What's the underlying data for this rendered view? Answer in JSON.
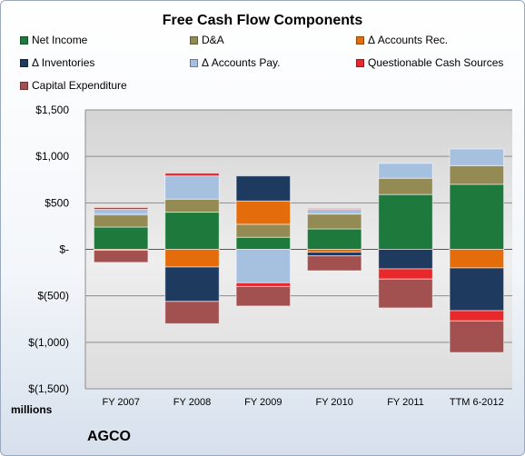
{
  "chart_data": {
    "type": "bar",
    "stacked": true,
    "title": "Free Cash Flow Components",
    "ylabel": "millions",
    "ylim": [
      -1500,
      1500
    ],
    "y_ticks": [
      1500,
      1000,
      500,
      0,
      -500,
      -1000,
      -1500
    ],
    "y_tick_labels": [
      "$1,500",
      "$1,000",
      "$500",
      "$-",
      "$(500)",
      "$(1,000)",
      "$(1,500)"
    ],
    "categories": [
      "FY 2007",
      "FY 2008",
      "FY 2009",
      "FY 2010",
      "FY 2011",
      "TTM 6-2012"
    ],
    "grid": true,
    "legend_position": "top",
    "series": [
      {
        "name": "Net Income",
        "color": "#1e7a3c",
        "values": [
          240,
          400,
          130,
          220,
          590,
          700
        ]
      },
      {
        "name": "D&A",
        "color": "#948a54",
        "values": [
          130,
          140,
          140,
          160,
          175,
          200
        ]
      },
      {
        "name": "Δ Accounts Rec.",
        "color": "#e46c0a",
        "values": [
          -10,
          -190,
          250,
          -30,
          0,
          -200
        ]
      },
      {
        "name": "Δ Inventories",
        "color": "#1f3a5f",
        "values": [
          10,
          -370,
          270,
          -40,
          -210,
          -460
        ]
      },
      {
        "name": "Δ Accounts Pay.",
        "color": "#a6c0e0",
        "values": [
          50,
          250,
          -360,
          50,
          160,
          180
        ]
      },
      {
        "name": "Questionable Cash Sources",
        "color": "#e8282b",
        "values": [
          20,
          30,
          -40,
          10,
          -110,
          -110
        ]
      },
      {
        "name": "Capital Expenditure",
        "color": "#a35050",
        "values": [
          -130,
          -240,
          -210,
          -160,
          -310,
          -340
        ]
      }
    ]
  },
  "footer": {
    "units_label": "millions",
    "company": "AGCO"
  }
}
